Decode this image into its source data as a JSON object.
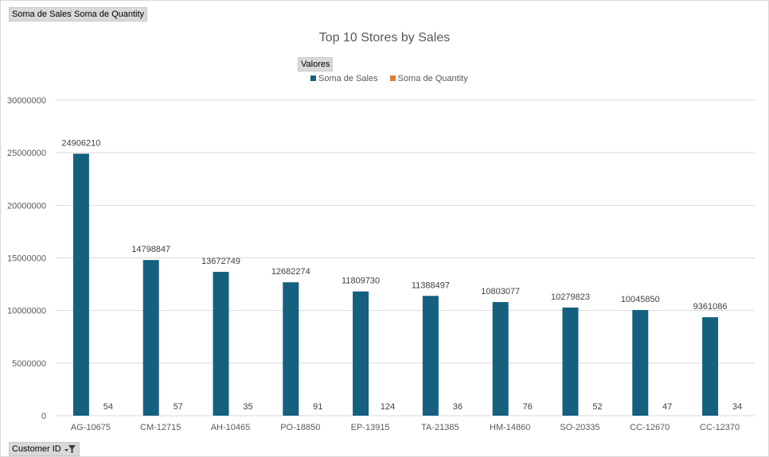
{
  "field_buttons": {
    "sales": "Soma de Sales",
    "quantity": "Soma de Quantity",
    "values": "Valores",
    "axis_field": "Customer ID"
  },
  "colors": {
    "sales": "#15607f",
    "quantity": "#e07b39",
    "grid": "#d9d9d9",
    "text": "#595959"
  },
  "chart_data": {
    "type": "bar",
    "title": "Top 10 Stores by Sales",
    "xlabel": "",
    "ylabel": "",
    "categories": [
      "AG-10675",
      "CM-12715",
      "AH-10465",
      "PO-18850",
      "EP-13915",
      "TA-21385",
      "HM-14860",
      "SO-20335",
      "CC-12670",
      "CC-12370"
    ],
    "series": [
      {
        "name": "Soma de Sales",
        "values": [
          24906210,
          14798847,
          13672749,
          12682274,
          11809730,
          11388497,
          10803077,
          10279823,
          10045850,
          9361086
        ]
      },
      {
        "name": "Soma de Quantity",
        "values": [
          54,
          57,
          35,
          91,
          124,
          36,
          76,
          52,
          47,
          34
        ]
      }
    ],
    "ylim": [
      0,
      30000000
    ],
    "yticks": [
      "0",
      "5000000",
      "10000000",
      "15000000",
      "20000000",
      "25000000",
      "30000000"
    ],
    "grid": true,
    "legend": "top"
  }
}
